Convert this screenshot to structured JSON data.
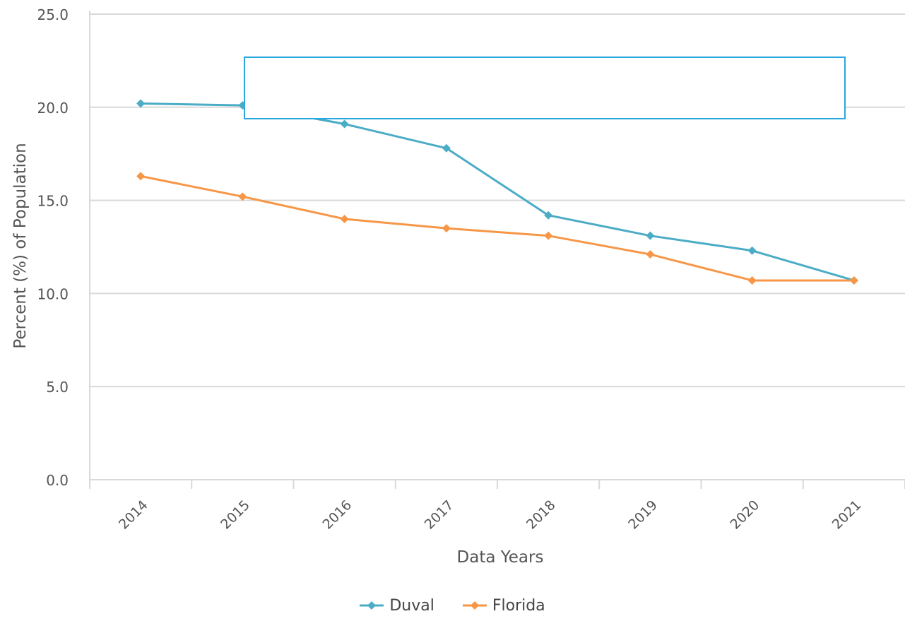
{
  "chart_data": {
    "type": "line",
    "title": "",
    "xlabel": "Data Years",
    "ylabel": "Percent (%) of Population",
    "categories": [
      "2014",
      "2015",
      "2016",
      "2017",
      "2018",
      "2019",
      "2020",
      "2021"
    ],
    "ylim": [
      0,
      25
    ],
    "yticks": [
      "0.0",
      "5.0",
      "10.0",
      "15.0",
      "20.0",
      "25.0"
    ],
    "grid": true,
    "legend_position": "bottom",
    "series": [
      {
        "name": "Duval",
        "color": "#4BACC6",
        "values": [
          20.2,
          20.1,
          19.1,
          17.8,
          14.2,
          13.1,
          12.3,
          10.7
        ]
      },
      {
        "name": "Florida",
        "color": "#F79646",
        "values": [
          16.3,
          15.2,
          14.0,
          13.5,
          13.1,
          12.1,
          10.7,
          10.7
        ]
      }
    ]
  }
}
